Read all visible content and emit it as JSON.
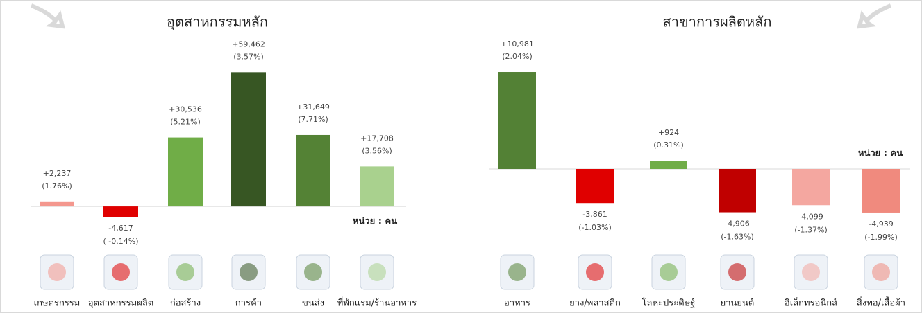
{
  "chart_data": [
    {
      "type": "bar",
      "title": "อุตสาหกรรมหลัก",
      "unit_label": "หน่วย : คน",
      "categories": [
        "เกษตรกรรม",
        "อุตสาหกรรมผลิต",
        "ก่อสร้าง",
        "การค้า",
        "ขนส่ง",
        "ที่พักแรม/ร้านอาหาร"
      ],
      "values": [
        2237,
        -4617,
        30536,
        59462,
        31649,
        17708
      ],
      "value_labels": [
        "+2,237",
        "-4,617",
        "+30,536",
        "+59,462",
        "+31,649",
        "+17,708"
      ],
      "percent_values": [
        1.76,
        -0.14,
        5.21,
        3.57,
        7.71,
        3.56
      ],
      "percent_labels": [
        "(1.76%)",
        "( -0.14%)",
        "(5.21%)",
        "(3.57%)",
        "(7.71%)",
        "(3.56%)"
      ],
      "colors": [
        "#f4978e",
        "#e00000",
        "#70ad47",
        "#375623",
        "#548235",
        "#a9d18e"
      ],
      "ylim": [
        -19000,
        70000
      ]
    },
    {
      "type": "bar",
      "title": "สาขาการผลิตหลัก",
      "unit_label": "หน่วย : คน",
      "categories": [
        "อาหาร",
        "ยาง/พลาสติก",
        "โลหะประดิษฐ์",
        "ยานยนต์",
        "อิเล็กทรอนิกส์",
        "สิ่งทอ/เสื้อผ้า"
      ],
      "values": [
        10981,
        -3861,
        924,
        -4906,
        -4099,
        -4939
      ],
      "value_labels": [
        "+10,981",
        "-3,861",
        "+924",
        "-4,906",
        "-4,099",
        "-4,939"
      ],
      "percent_values": [
        2.04,
        -1.03,
        0.31,
        -1.63,
        -1.37,
        -1.99
      ],
      "percent_labels": [
        "(2.04%)",
        "(-1.03%)",
        "(0.31%)",
        "(-1.63%)",
        "(-1.37%)",
        "(-1.99%)"
      ],
      "colors": [
        "#538135",
        "#e00000",
        "#70ad47",
        "#c00000",
        "#f4a7a0",
        "#f08a7e"
      ],
      "ylim": [
        -9100,
        13650
      ]
    }
  ]
}
